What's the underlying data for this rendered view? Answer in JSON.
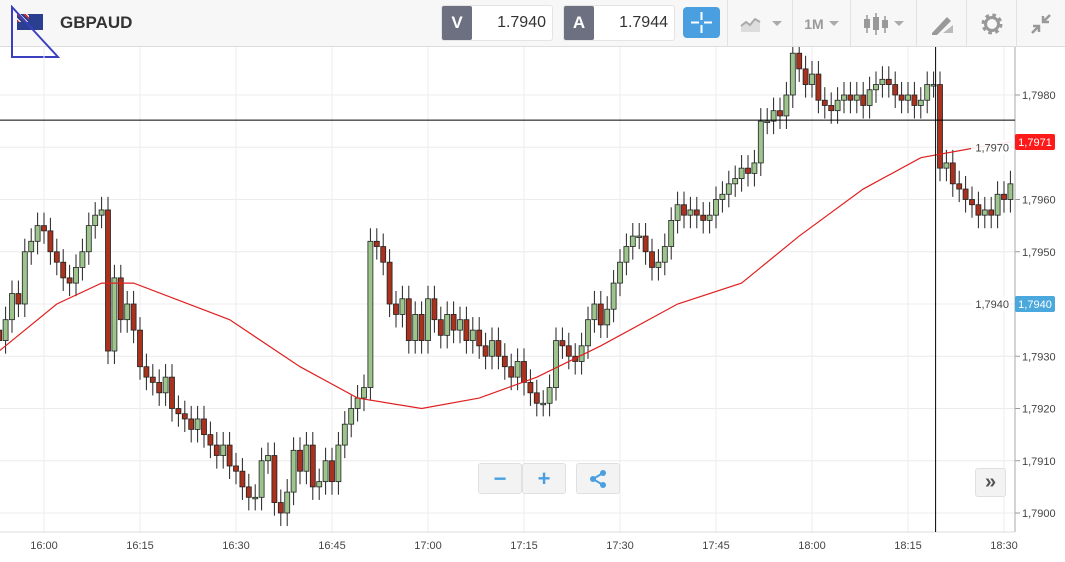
{
  "header": {
    "symbol": "GBPAUD",
    "flag_icon": "gb-au-flag-icon",
    "bid_label": "V",
    "bid_value": "1.7940",
    "ask_label": "A",
    "ask_value": "1.7944"
  },
  "toolbar": {
    "crosshair_icon": "crosshair-icon",
    "indicators_icon": "indicators-icon",
    "timeframe": "1M",
    "chart_type_icon": "candlestick-icon",
    "drawing_icon": "drawing-tools-icon",
    "settings_icon": "gear-icon",
    "collapse_icon": "collapse-icon",
    "accent": "#4a9fe0"
  },
  "chart_data": {
    "type": "candlestick",
    "timeframe": "1M",
    "start": "15:53",
    "closes": [
      1.7933,
      1.7937,
      1.7942,
      1.794,
      1.795,
      1.7952,
      1.7955,
      1.7954,
      1.795,
      1.7948,
      1.7945,
      1.7944,
      1.7947,
      1.795,
      1.7955,
      1.7957,
      1.7958,
      1.7931,
      1.7945,
      1.7937,
      1.794,
      1.7935,
      1.7928,
      1.7926,
      1.7925,
      1.7923,
      1.7926,
      1.792,
      1.7919,
      1.7918,
      1.7916,
      1.7918,
      1.7915,
      1.7913,
      1.7911,
      1.7913,
      1.7909,
      1.7908,
      1.7905,
      1.7903,
      1.7903,
      1.791,
      1.7911,
      1.7902,
      1.79,
      1.7904,
      1.7912,
      1.7908,
      1.7913,
      1.7905,
      1.7906,
      1.791,
      1.7906,
      1.7913,
      1.7917,
      1.792,
      1.7922,
      1.7924,
      1.7952,
      1.7951,
      1.7948,
      1.794,
      1.7938,
      1.7941,
      1.7933,
      1.7938,
      1.7933,
      1.7941,
      1.7937,
      1.7934,
      1.7938,
      1.7935,
      1.7937,
      1.7933,
      1.7935,
      1.7932,
      1.793,
      1.7933,
      1.793,
      1.7928,
      1.7926,
      1.7929,
      1.7925,
      1.7923,
      1.7921,
      1.7921,
      1.7924,
      1.7933,
      1.7932,
      1.793,
      1.7929,
      1.7932,
      1.7937,
      1.794,
      1.7936,
      1.7939,
      1.7944,
      1.7948,
      1.7951,
      1.7953,
      1.7953,
      1.795,
      1.7947,
      1.7948,
      1.7951,
      1.7956,
      1.7959,
      1.7957,
      1.7958,
      1.7957,
      1.7956,
      1.7957,
      1.796,
      1.7961,
      1.7963,
      1.7964,
      1.7966,
      1.7965,
      1.7967,
      1.7975,
      1.7975,
      1.7977,
      1.7976,
      1.798,
      1.7988,
      1.7985,
      1.7982,
      1.7984,
      1.7979,
      1.7978,
      1.7977,
      1.7979,
      1.798,
      1.7979,
      1.798,
      1.7978,
      1.7981,
      1.7982,
      1.7983,
      1.7982,
      1.798,
      1.7979,
      1.798,
      1.7978,
      1.7979,
      1.7982,
      1.7982,
      1.7966,
      1.7967,
      1.7963,
      1.7962,
      1.796,
      1.7959,
      1.7957,
      1.7958,
      1.7957,
      1.7961,
      1.796,
      1.7963
    ],
    "moving_average": [
      [
        "15:53",
        1.7931
      ],
      [
        "16:02",
        1.794
      ],
      [
        "16:09",
        1.7944
      ],
      [
        "16:14",
        1.7944
      ],
      [
        "16:29",
        1.7937
      ],
      [
        "16:40",
        1.7928
      ],
      [
        "16:49",
        1.7922
      ],
      [
        "16:59",
        1.792
      ],
      [
        "17:08",
        1.7922
      ],
      [
        "17:17",
        1.7926
      ],
      [
        "17:27",
        1.7932
      ],
      [
        "17:39",
        1.794
      ],
      [
        "17:49",
        1.7944
      ],
      [
        "17:58",
        1.7953
      ],
      [
        "18:08",
        1.7962
      ],
      [
        "18:17",
        1.7968
      ],
      [
        "18:26",
        1.797
      ],
      [
        "18:31",
        1.7971
      ]
    ],
    "x_ticks": [
      "16:00",
      "16:15",
      "16:30",
      "16:45",
      "17:00",
      "17:15",
      "17:30",
      "17:45",
      "18:00",
      "18:15",
      "18:30"
    ],
    "y_ticks": [
      "1,7900",
      "1,7910",
      "1,7920",
      "1,7930",
      "1,7940",
      "1,7950",
      "1,7960",
      "1,7970",
      "1,7980"
    ],
    "ylim": [
      1.7897,
      1.799
    ],
    "grid": true,
    "ma_badge": "1,7971",
    "price_badge": "1,7940",
    "crosshair": {
      "time": "18:19",
      "price": 1.79752
    },
    "colors": {
      "up": "#9cc48c",
      "down": "#a8321e",
      "ma": "#e02020",
      "ma_badge": "#ff1a1a",
      "price_badge": "#4aa8dc"
    }
  },
  "controls": {
    "zoom_out": "−",
    "zoom_in": "+",
    "share_icon": "share-icon",
    "scroll_right": "»"
  }
}
